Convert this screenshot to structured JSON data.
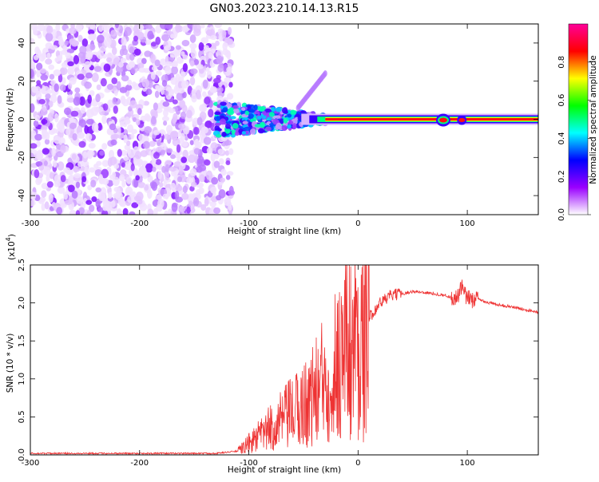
{
  "title": "GN03.2023.210.14.13.R15",
  "chart_data": [
    {
      "type": "heatmap",
      "xlabel": "Height of straight line (km)",
      "ylabel": "Frequency (Hz)",
      "xlim": [
        -300,
        165
      ],
      "ylim": [
        -50,
        50
      ],
      "x_ticks": [
        -300,
        -200,
        -100,
        0,
        100
      ],
      "y_ticks": [
        -40,
        -20,
        0,
        20,
        40
      ],
      "colorbar": {
        "label": "Normalized spectral amplitude",
        "range": [
          0.0,
          1.0
        ],
        "ticks": [
          "0.0",
          "0.2",
          "0.4",
          "0.6",
          "0.8"
        ],
        "colors": [
          "#ffffff",
          "#9a00ff",
          "#0000ff",
          "#00ffff",
          "#00ff00",
          "#ffff00",
          "#ff0000",
          "#ff0099"
        ]
      },
      "features": {
        "noise_region_x": [
          -300,
          -120
        ],
        "signal_line_frequency": 0,
        "strong_signal_x": [
          -30,
          165
        ],
        "transition_x": [
          -130,
          -30
        ]
      }
    },
    {
      "type": "line",
      "xlabel": "Height of straight line (km)",
      "ylabel": "SNR (10 * v/v)",
      "y_multiplier_label": "(x10",
      "y_multiplier_exp": "4",
      "xlim": [
        -300,
        165
      ],
      "ylim": [
        0,
        2.5
      ],
      "x_ticks": [
        -300,
        -200,
        -100,
        0,
        100
      ],
      "y_ticks": [
        "0.0",
        "0.5",
        "1.0",
        "1.5",
        "2.0",
        "2.5"
      ],
      "color": "#ee3333",
      "series": [
        {
          "x": [
            -300,
            -200,
            -130,
            -110,
            -100,
            -90,
            -80,
            -70,
            -60,
            -50,
            -40,
            -30,
            -20,
            -10,
            -5,
            0,
            5,
            10,
            20,
            30,
            40,
            50,
            60,
            70,
            80,
            90,
            95,
            100,
            110,
            120,
            140,
            165
          ],
          "y": [
            0.02,
            0.02,
            0.02,
            0.05,
            0.15,
            0.25,
            0.35,
            0.45,
            0.55,
            0.65,
            0.8,
            1.0,
            1.2,
            1.5,
            1.4,
            1.6,
            1.4,
            1.8,
            2.0,
            2.1,
            2.12,
            2.15,
            2.14,
            2.12,
            2.1,
            2.05,
            2.2,
            2.05,
            2.05,
            2.0,
            1.95,
            1.88
          ]
        }
      ]
    }
  ]
}
